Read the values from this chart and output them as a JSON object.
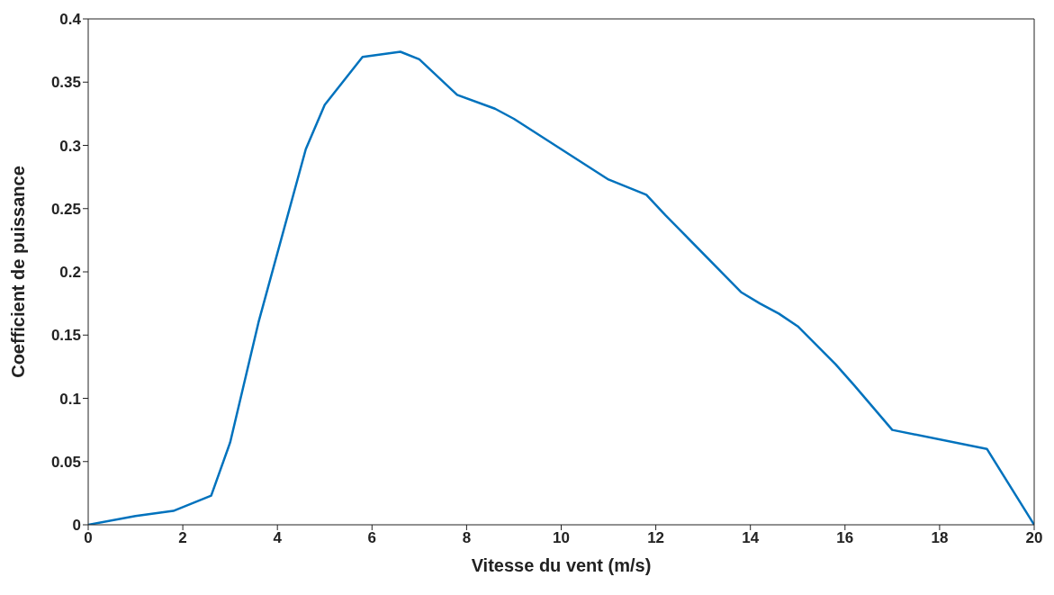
{
  "chart_data": {
    "type": "line",
    "xlabel": "Vitesse du vent (m/s)",
    "ylabel": "Coefficient de puissance",
    "x": [
      0,
      1,
      1.8,
      2.6,
      3,
      3.6,
      4.6,
      5,
      5.8,
      6.6,
      7,
      7.8,
      8.6,
      9,
      10,
      11,
      11.8,
      12.2,
      13.8,
      14.2,
      14.6,
      15,
      15.8,
      16.2,
      17,
      19,
      20
    ],
    "series": [
      {
        "color": "#0072bd",
        "values": [
          0,
          0.007,
          0.011,
          0.023,
          0.065,
          0.16,
          0.297,
          0.332,
          0.37,
          0.374,
          0.368,
          0.34,
          0.329,
          0.321,
          0.297,
          0.273,
          0.261,
          0.245,
          0.184,
          0.175,
          0.167,
          0.157,
          0.127,
          0.11,
          0.075,
          0.06,
          0
        ]
      }
    ],
    "xlim": [
      0,
      20
    ],
    "xticks": [
      0,
      2,
      4,
      6,
      8,
      10,
      12,
      14,
      16,
      18,
      20
    ],
    "ylim": [
      0,
      0.4
    ],
    "yticks": [
      0,
      0.05,
      0.1,
      0.15,
      0.2,
      0.25,
      0.3,
      0.35,
      0.4
    ],
    "grid": false,
    "legend": false,
    "marker": "none",
    "line_style": "solid"
  }
}
